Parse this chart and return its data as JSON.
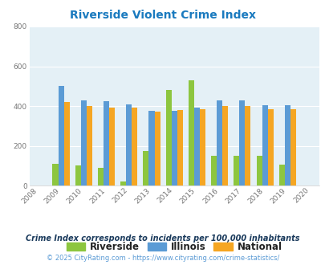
{
  "title": "Riverside Violent Crime Index",
  "title_color": "#1a7abf",
  "years": [
    2008,
    2009,
    2010,
    2011,
    2012,
    2013,
    2014,
    2015,
    2016,
    2017,
    2018,
    2019,
    2020
  ],
  "bar_years": [
    2009,
    2010,
    2011,
    2012,
    2013,
    2014,
    2015,
    2016,
    2017,
    2018,
    2019
  ],
  "riverside": [
    110,
    100,
    90,
    20,
    175,
    480,
    530,
    150,
    150,
    150,
    105
  ],
  "illinois": [
    500,
    430,
    425,
    410,
    375,
    375,
    390,
    430,
    430,
    405,
    405
  ],
  "national": [
    420,
    400,
    390,
    390,
    370,
    380,
    385,
    400,
    400,
    385,
    385
  ],
  "riverside_color": "#8dc63f",
  "illinois_color": "#5b9bd5",
  "national_color": "#f5a623",
  "ylim": [
    0,
    800
  ],
  "yticks": [
    0,
    200,
    400,
    600,
    800
  ],
  "bg_color": "#e4f0f6",
  "grid_color": "#ffffff",
  "legend_labels": [
    "Riverside",
    "Illinois",
    "National"
  ],
  "footnote1": "Crime Index corresponds to incidents per 100,000 inhabitants",
  "footnote2": "© 2025 CityRating.com - https://www.cityrating.com/crime-statistics/",
  "footnote1_color": "#1a3a5c",
  "footnote2_color": "#5b9bd5",
  "bar_width": 0.25
}
